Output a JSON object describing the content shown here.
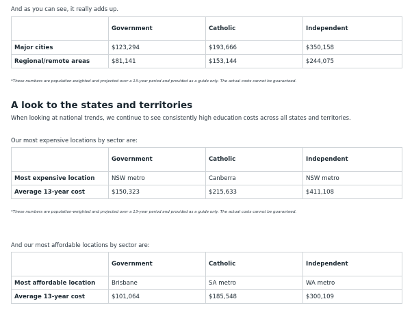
{
  "intro": "And as you can see, it really adds up.",
  "table1": {
    "header": [
      "Government",
      "Catholic",
      "Independent"
    ],
    "rows": [
      [
        "Major cities",
        "$123,294",
        "$193,666",
        "$350,158"
      ],
      [
        "Regional/remote areas",
        "$81,141",
        "$153,144",
        "$244,075"
      ]
    ]
  },
  "note1": "*These numbers are population-weighted and projected over a 13-year period and provided as a guide only. The actual costs cannot be guaranteed.",
  "heading": "A look to the states and territories",
  "subheading": "When looking at national trends, we continue to see consistently high education costs across all states and territories.",
  "lead2": "Our most expensive locations by sector are:",
  "table2": {
    "header": [
      "Government",
      "Catholic",
      "Independent"
    ],
    "rows": [
      [
        "Most expensive location",
        "NSW metro",
        "Canberra",
        "NSW metro"
      ],
      [
        "Average 13-year cost",
        "$150,323",
        "$215,633",
        "$411,108"
      ]
    ]
  },
  "note2": "*These numbers are population-weighted and projected over a 13-year period and provided as a guide only. The actual costs cannot be guaranteed.",
  "lead3": "And our most affordable locations by sector are:",
  "table3": {
    "header": [
      "Government",
      "Catholic",
      "Independent"
    ],
    "rows": [
      [
        "Most affordable location",
        "Brisbane",
        "SA metro",
        "WA metro"
      ],
      [
        "Average 13-year cost",
        "$101,064",
        "$185,548",
        "$300,109"
      ]
    ]
  }
}
